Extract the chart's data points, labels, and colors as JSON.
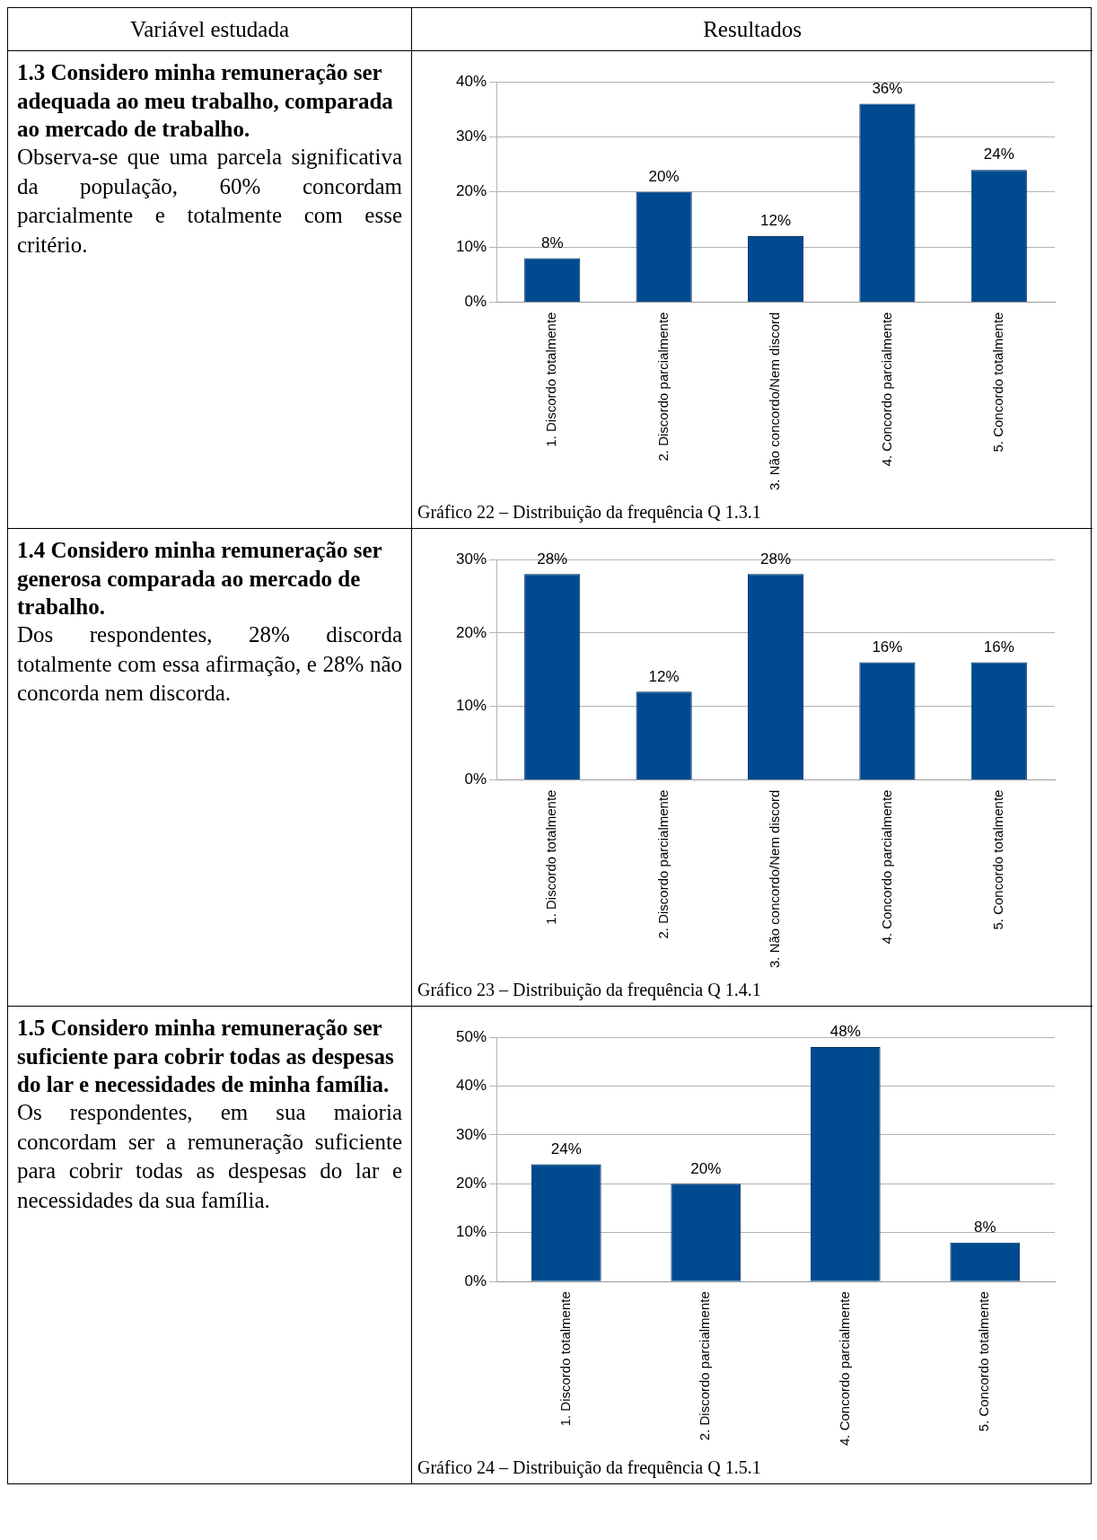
{
  "chart_data": [
    {
      "type": "other",
      "title": "Variável estudada"
    },
    {
      "type": "other",
      "title": "Resultados"
    },
    {
      "type": "other",
      "title": "1.3 Considero minha remuneração ser adequada ao meu trabalho, comparada ao mercado de trabalho.",
      "subtitle": "Observa-se que uma parcela significativa da população, 60% concordam parcialmente e totalmente com esse critério."
    },
    {
      "type": "bar",
      "categories": [
        "1. Discordo totalmente",
        "2. Discordo parcialmente",
        "3. Não concordo/Nem discord",
        "4. Concordo parcialmente",
        "5. Concordo totalmente"
      ],
      "values": [
        8,
        20,
        12,
        36,
        24
      ],
      "value_labels": [
        "8%",
        "20%",
        "12%",
        "36%",
        "24%"
      ],
      "color": "#004a8f",
      "ylim": [
        0,
        40
      ],
      "yticks": [
        {
          "value": 0,
          "label": "0%"
        },
        {
          "value": 10,
          "label": "10%"
        },
        {
          "value": 20,
          "label": "20%"
        },
        {
          "value": 30,
          "label": "30%"
        },
        {
          "value": 40,
          "label": "40%"
        }
      ],
      "grid": "y",
      "legend": false,
      "annotations": [
        "Gráfico 22 – Distribuição da frequência Q 1.3.1"
      ]
    },
    {
      "type": "other",
      "title": "1.4 Considero minha remuneração ser generosa comparada ao mercado de trabalho.",
      "subtitle": "Dos respondentes, 28% discorda totalmente com essa afirmação, e 28% não concorda nem discorda."
    },
    {
      "type": "bar",
      "categories": [
        "1. Discordo totalmente",
        "2. Discordo parcialmente",
        "3. Não concordo/Nem discord",
        "4. Concordo parcialmente",
        "5. Concordo totalmente"
      ],
      "values": [
        28,
        12,
        28,
        16,
        16
      ],
      "value_labels": [
        "28%",
        "12%",
        "28%",
        "16%",
        "16%"
      ],
      "color": "#004a8f",
      "ylim": [
        0,
        30
      ],
      "yticks": [
        {
          "value": 0,
          "label": "0%"
        },
        {
          "value": 10,
          "label": "10%"
        },
        {
          "value": 20,
          "label": "20%"
        },
        {
          "value": 30,
          "label": "30%"
        }
      ],
      "grid": "y",
      "legend": false,
      "annotations": [
        "Gráfico 23 – Distribuição da frequência Q 1.4.1"
      ]
    },
    {
      "type": "other",
      "title": "1.5 Considero minha remuneração ser suficiente para cobrir todas as despesas do lar e necessidades de minha família.",
      "subtitle": "Os respondentes, em sua maioria concordam ser a remuneração suficiente para cobrir todas as despesas do lar e necessidades da sua família."
    },
    {
      "type": "bar",
      "categories": [
        "1. Discordo totalmente",
        "2. Discordo parcialmente",
        "4. Concordo parcialmente",
        "5. Concordo totalmente"
      ],
      "values": [
        24,
        20,
        48,
        8
      ],
      "value_labels": [
        "24%",
        "20%",
        "48%",
        "8%"
      ],
      "color": "#004a8f",
      "ylim": [
        0,
        50
      ],
      "yticks": [
        {
          "value": 0,
          "label": "0%"
        },
        {
          "value": 10,
          "label": "10%"
        },
        {
          "value": 20,
          "label": "20%"
        },
        {
          "value": 30,
          "label": "30%"
        },
        {
          "value": 40,
          "label": "40%"
        },
        {
          "value": 50,
          "label": "50%"
        }
      ],
      "grid": "y",
      "legend": false,
      "annotations": [
        "Gráfico 24 – Distribuição da frequência Q 1.5.1"
      ]
    }
  ]
}
